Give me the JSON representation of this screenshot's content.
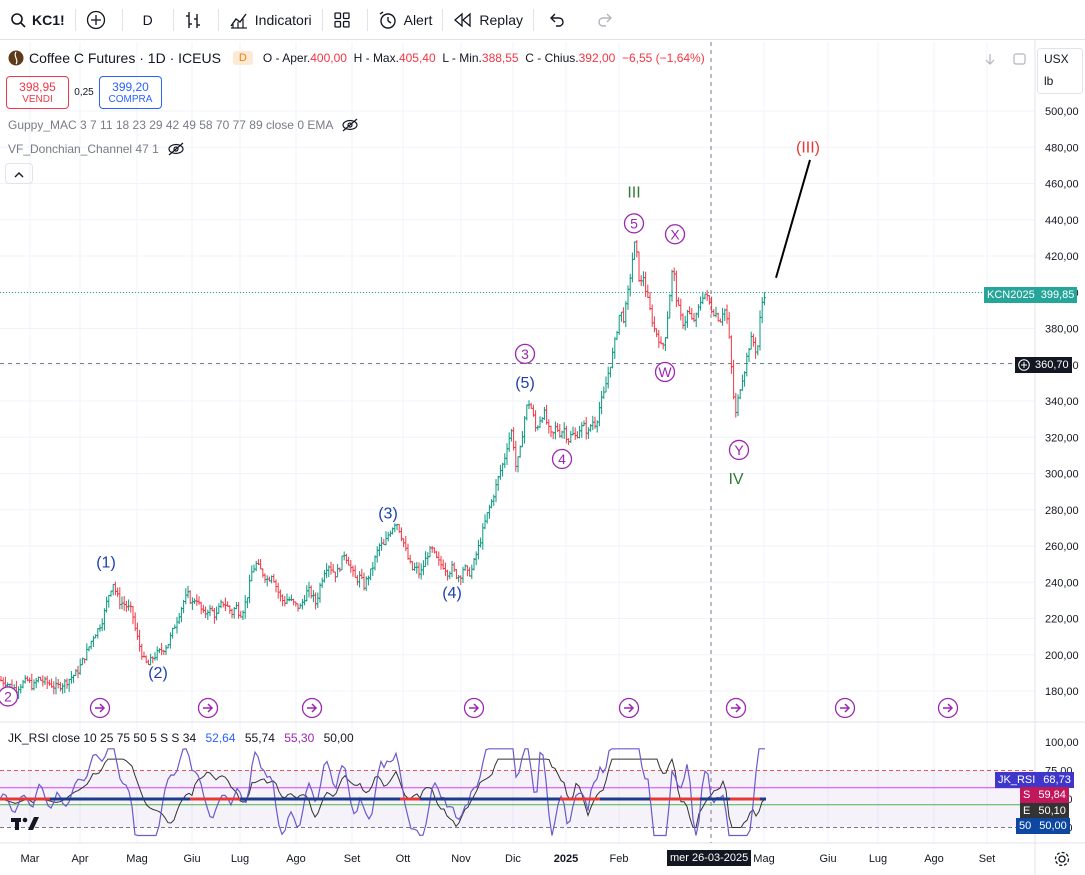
{
  "toolbar": {
    "symbol": "KC1!",
    "interval": "D",
    "indicators_label": "Indicatori",
    "alert_label": "Alert",
    "replay_label": "Replay"
  },
  "legend": {
    "title": "Coffee C Futures · 1D · ICEUS",
    "badge": "D",
    "open_label": "O - Aper.",
    "open": "400,00",
    "high_label": "H - Max.",
    "high": "405,40",
    "low_label": "L - Min.",
    "low": "388,55",
    "close_label": "C - Chius.",
    "close": "392,00",
    "change": "−6,55 (−1,64%)"
  },
  "trade": {
    "sell_price": "398,95",
    "sell_label": "VENDI",
    "spread": "0,25",
    "buy_price": "399,20",
    "buy_label": "COMPRA"
  },
  "indicators": {
    "guppy": "Guppy_MAC 3 7 11 18 23 29 42 49 58 70 77 89 close 0 EMA",
    "donchian": "VF_Donchian_Channel 47 1"
  },
  "axis": {
    "currency": "USX",
    "unit": "lb"
  },
  "price_labels": {
    "last_ticker": "KCN2025",
    "last_value": "399,85",
    "crosshair_value": "360,70",
    "crosshair_date": "mer 26-03-2025"
  },
  "rsi": {
    "title": "JK_RSI close 10 25 75 50 5 S S 34",
    "v1": "52,64",
    "v2": "55,74",
    "v3": "55,30",
    "v4": "50,00",
    "label_jk": "JK_RSI",
    "label_jk_value": "68,73",
    "label_s": "S",
    "label_s_value": "59,84",
    "label_e": "E",
    "label_e_value": "50,10",
    "label_50": "50",
    "label_50_value": "50,00"
  },
  "colors": {
    "up": "#089981",
    "down": "#f23645",
    "wave_blue": "#1e40af",
    "wave_purple": "#9c27b0",
    "wave_green": "#2e7d32",
    "wave_red": "#e53935",
    "rsi_line": "#6a5acd"
  },
  "chart_data": {
    "type": "candlestick",
    "price_axis": {
      "ticks": [
        180,
        200,
        220,
        240,
        260,
        280,
        300,
        320,
        340,
        360,
        380,
        400,
        420,
        440,
        460,
        480,
        500
      ],
      "tick_labels": [
        "180,00",
        "200,00",
        "220,00",
        "240,00",
        "260,00",
        "280,00",
        "300,00",
        "320,00",
        "340,00",
        "360,00",
        "380,00",
        "400,00",
        "420,00",
        "440,00",
        "460,00",
        "480,00",
        "500,00"
      ],
      "range": [
        168,
        512
      ]
    },
    "time_axis": {
      "labels": [
        "Mar",
        "Apr",
        "Mag",
        "Giu",
        "Lug",
        "Ago",
        "Set",
        "Ott",
        "Nov",
        "Dic",
        "2025",
        "Feb",
        "Mag",
        "Giu",
        "Lug",
        "Ago",
        "Set"
      ]
    },
    "price_path": [
      [
        0,
        186
      ],
      [
        5,
        185
      ],
      [
        10,
        183
      ],
      [
        16,
        181
      ],
      [
        22,
        184
      ],
      [
        28,
        186
      ],
      [
        33,
        182
      ],
      [
        38,
        187
      ],
      [
        44,
        185
      ],
      [
        50,
        184
      ],
      [
        55,
        182
      ],
      [
        60,
        183
      ],
      [
        66,
        185
      ],
      [
        72,
        188
      ],
      [
        77,
        190
      ],
      [
        82,
        196
      ],
      [
        88,
        203
      ],
      [
        93,
        210
      ],
      [
        98,
        214
      ],
      [
        103,
        220
      ],
      [
        108,
        232
      ],
      [
        113,
        240
      ],
      [
        116,
        234
      ],
      [
        120,
        229
      ],
      [
        124,
        228
      ],
      [
        128,
        226
      ],
      [
        132,
        224
      ],
      [
        136,
        212
      ],
      [
        140,
        204
      ],
      [
        144,
        197
      ],
      [
        148,
        194
      ],
      [
        152,
        198
      ],
      [
        158,
        201
      ],
      [
        163,
        203
      ],
      [
        168,
        206
      ],
      [
        172,
        212
      ],
      [
        176,
        218
      ],
      [
        180,
        224
      ],
      [
        184,
        230
      ],
      [
        188,
        233
      ],
      [
        192,
        228
      ],
      [
        196,
        232
      ],
      [
        200,
        226
      ],
      [
        204,
        222
      ],
      [
        208,
        225
      ],
      [
        212,
        224
      ],
      [
        216,
        221
      ],
      [
        220,
        227
      ],
      [
        224,
        229
      ],
      [
        228,
        226
      ],
      [
        232,
        223
      ],
      [
        236,
        227
      ],
      [
        240,
        222
      ],
      [
        244,
        226
      ],
      [
        248,
        234
      ],
      [
        252,
        246
      ],
      [
        256,
        250
      ],
      [
        260,
        247
      ],
      [
        264,
        244
      ],
      [
        268,
        241
      ],
      [
        272,
        245
      ],
      [
        276,
        238
      ],
      [
        280,
        232
      ],
      [
        284,
        229
      ],
      [
        288,
        231
      ],
      [
        292,
        229
      ],
      [
        296,
        227
      ],
      [
        300,
        226
      ],
      [
        304,
        231
      ],
      [
        308,
        236
      ],
      [
        312,
        233
      ],
      [
        316,
        228
      ],
      [
        320,
        238
      ],
      [
        324,
        246
      ],
      [
        328,
        250
      ],
      [
        332,
        247
      ],
      [
        336,
        244
      ],
      [
        340,
        249
      ],
      [
        344,
        256
      ],
      [
        348,
        252
      ],
      [
        352,
        246
      ],
      [
        356,
        241
      ],
      [
        360,
        243
      ],
      [
        364,
        238
      ],
      [
        368,
        243
      ],
      [
        372,
        247
      ],
      [
        376,
        255
      ],
      [
        380,
        261
      ],
      [
        384,
        260
      ],
      [
        388,
        266
      ],
      [
        392,
        270
      ],
      [
        396,
        274
      ],
      [
        400,
        268
      ],
      [
        404,
        261
      ],
      [
        408,
        253
      ],
      [
        412,
        247
      ],
      [
        416,
        248
      ],
      [
        420,
        244
      ],
      [
        424,
        250
      ],
      [
        428,
        256
      ],
      [
        432,
        258
      ],
      [
        436,
        253
      ],
      [
        440,
        250
      ],
      [
        444,
        249
      ],
      [
        448,
        245
      ],
      [
        452,
        248
      ],
      [
        456,
        244
      ],
      [
        460,
        243
      ],
      [
        464,
        249
      ],
      [
        468,
        244
      ],
      [
        472,
        247
      ],
      [
        476,
        255
      ],
      [
        480,
        262
      ],
      [
        484,
        271
      ],
      [
        488,
        279
      ],
      [
        492,
        285
      ],
      [
        496,
        293
      ],
      [
        500,
        301
      ],
      [
        504,
        307
      ],
      [
        508,
        318
      ],
      [
        512,
        324
      ],
      [
        516,
        303
      ],
      [
        520,
        312
      ],
      [
        524,
        329
      ],
      [
        528,
        340
      ],
      [
        532,
        335
      ],
      [
        536,
        324
      ],
      [
        540,
        330
      ],
      [
        544,
        334
      ],
      [
        548,
        325
      ],
      [
        552,
        320
      ],
      [
        556,
        326
      ],
      [
        560,
        322
      ],
      [
        564,
        325
      ],
      [
        568,
        318
      ],
      [
        572,
        322
      ],
      [
        576,
        320
      ],
      [
        580,
        325
      ],
      [
        584,
        326
      ],
      [
        588,
        322
      ],
      [
        592,
        329
      ],
      [
        596,
        327
      ],
      [
        600,
        338
      ],
      [
        604,
        344
      ],
      [
        608,
        355
      ],
      [
        612,
        364
      ],
      [
        616,
        376
      ],
      [
        620,
        390
      ],
      [
        624,
        385
      ],
      [
        628,
        400
      ],
      [
        632,
        416
      ],
      [
        634,
        428
      ],
      [
        637,
        420
      ],
      [
        640,
        402
      ],
      [
        643,
        410
      ],
      [
        646,
        400
      ],
      [
        650,
        390
      ],
      [
        654,
        380
      ],
      [
        658,
        376
      ],
      [
        662,
        368
      ],
      [
        666,
        378
      ],
      [
        670,
        400
      ],
      [
        673,
        416
      ],
      [
        676,
        398
      ],
      [
        680,
        387
      ],
      [
        684,
        382
      ],
      [
        688,
        390
      ],
      [
        692,
        384
      ],
      [
        696,
        386
      ],
      [
        700,
        394
      ],
      [
        704,
        400
      ],
      [
        708,
        396
      ],
      [
        712,
        390
      ],
      [
        716,
        388
      ],
      [
        720,
        384
      ],
      [
        724,
        392
      ],
      [
        727,
        385
      ],
      [
        730,
        370
      ],
      [
        733,
        345
      ],
      [
        736,
        332
      ],
      [
        739,
        345
      ],
      [
        742,
        352
      ],
      [
        745,
        358
      ],
      [
        748,
        368
      ],
      [
        751,
        374
      ],
      [
        754,
        372
      ],
      [
        757,
        365
      ],
      [
        760,
        385
      ],
      [
        763,
        398
      ],
      [
        766,
        400
      ]
    ],
    "wave_labels": [
      {
        "text": "(1)",
        "date_index": 106,
        "price": 251,
        "color": "blue"
      },
      {
        "text": "(2)",
        "date_index": 158,
        "price": 190,
        "color": "blue"
      },
      {
        "text": "(3)",
        "date_index": 388,
        "price": 278,
        "color": "blue"
      },
      {
        "text": "(4)",
        "date_index": 452,
        "price": 234,
        "color": "blue"
      },
      {
        "text": "(5)",
        "date_index": 525,
        "price": 350,
        "color": "blue"
      },
      {
        "text": "3",
        "date_index": 525,
        "price": 366,
        "color": "purple",
        "circled": true
      },
      {
        "text": "4",
        "date_index": 562,
        "price": 308,
        "color": "purple",
        "circled": true
      },
      {
        "text": "III",
        "date_index": 634,
        "price": 455,
        "color": "green"
      },
      {
        "text": "5",
        "date_index": 634,
        "price": 438,
        "color": "purple",
        "circled": true
      },
      {
        "text": "X",
        "date_index": 675,
        "price": 432,
        "color": "purple",
        "circled": true
      },
      {
        "text": "W",
        "date_index": 665,
        "price": 356,
        "color": "purple",
        "circled": true
      },
      {
        "text": "Y",
        "date_index": 739,
        "price": 313,
        "color": "purple",
        "circled": true
      },
      {
        "text": "IV",
        "date_index": 736,
        "price": 297,
        "color": "green"
      },
      {
        "text": "(III)",
        "date_index": 808,
        "price": 480,
        "color": "red"
      },
      {
        "text": "2",
        "date_index": 8,
        "price": 177,
        "color": "purple",
        "circled": true
      }
    ],
    "projection": {
      "from": [
        776,
        408
      ],
      "to": [
        810,
        473
      ]
    },
    "rsi_axis": {
      "ticks": [
        100,
        75,
        50,
        25
      ],
      "tick_labels": [
        "100,00",
        "75,00",
        "50,00",
        "25,00"
      ]
    }
  }
}
